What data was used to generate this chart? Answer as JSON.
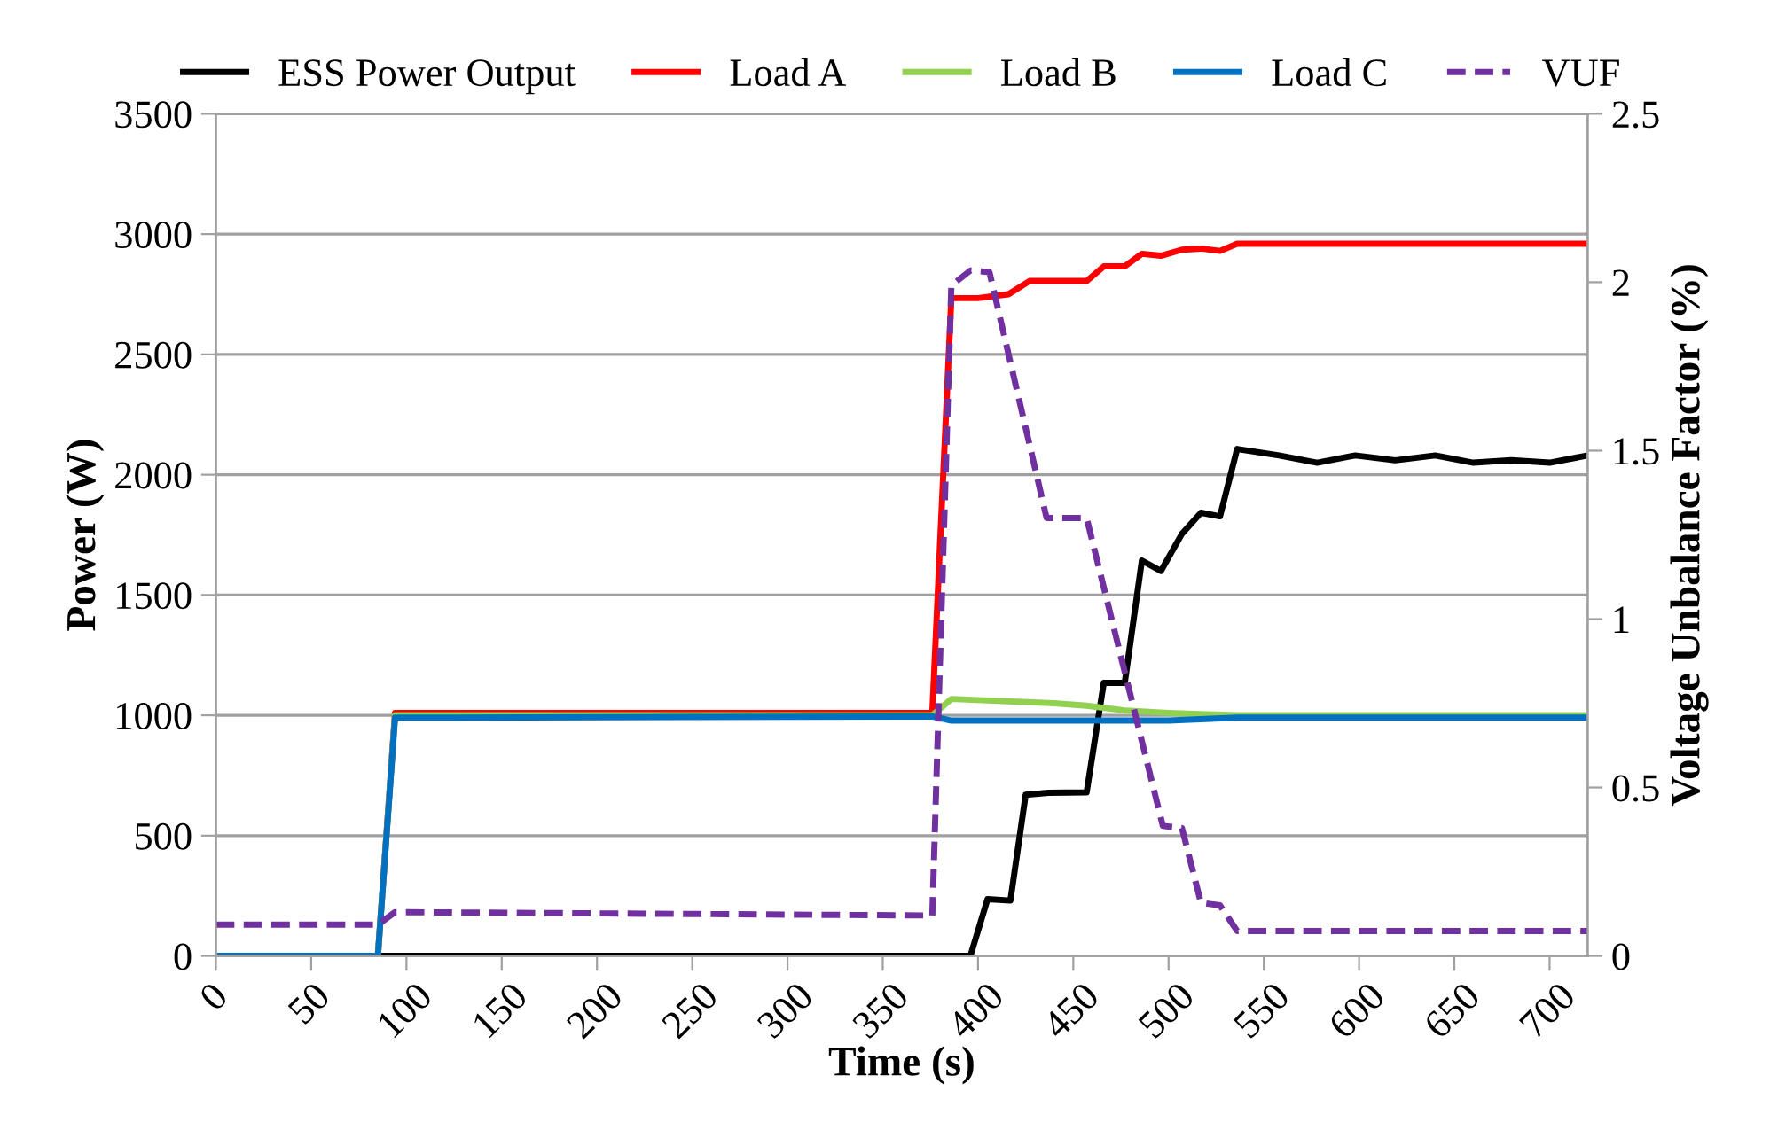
{
  "chart_data": {
    "type": "line",
    "xlabel": "Time (s)",
    "ylabel": "Power (W)",
    "y2label": "Voltage Unbalance Factor (%)",
    "xlim": [
      0,
      720
    ],
    "xticks": [
      0,
      50,
      100,
      150,
      200,
      250,
      300,
      350,
      400,
      450,
      500,
      550,
      600,
      650,
      700
    ],
    "ylim": [
      0,
      3500
    ],
    "yticks": [
      0,
      500,
      1000,
      1500,
      2000,
      2500,
      3000,
      3500
    ],
    "y2lim": [
      0,
      2.5
    ],
    "y2ticks": [
      0,
      0.5,
      1,
      1.5,
      2,
      2.5
    ],
    "grid": "y",
    "legend": "top",
    "marker": "none",
    "series": [
      {
        "name": "ESS Power Output",
        "color": "#000000",
        "x": [
          0,
          396,
          405,
          417,
          425,
          437,
          457,
          466,
          477,
          486,
          496,
          507,
          517,
          527,
          536,
          558,
          578,
          598,
          619,
          640,
          660,
          680,
          700,
          720
        ],
        "values": [
          0,
          0,
          236,
          230,
          670,
          678,
          680,
          1135,
          1135,
          1643,
          1600,
          1754,
          1842,
          1827,
          2107,
          2080,
          2050,
          2080,
          2060,
          2080,
          2050,
          2060,
          2050,
          2080
        ]
      },
      {
        "name": "Load A",
        "color": "#ff0000",
        "x": [
          0,
          85,
          94,
          376,
          386,
          400,
          416,
          427,
          457,
          466,
          477,
          486,
          496,
          507,
          517,
          527,
          536,
          720
        ],
        "values": [
          0,
          0,
          1010,
          1010,
          2734,
          2734,
          2750,
          2805,
          2805,
          2866,
          2866,
          2918,
          2910,
          2935,
          2940,
          2930,
          2960,
          2960
        ]
      },
      {
        "name": "Load B",
        "color": "#92d050",
        "x": [
          0,
          85,
          94,
          376,
          386,
          440,
          457,
          477,
          500,
          517,
          536,
          720
        ],
        "values": [
          0,
          0,
          1000,
          1000,
          1068,
          1050,
          1040,
          1020,
          1010,
          1005,
          1000,
          1000
        ]
      },
      {
        "name": "Load C",
        "color": "#0070c0",
        "x": [
          0,
          85,
          94,
          376,
          386,
          500,
          536,
          720
        ],
        "values": [
          0,
          0,
          990,
          995,
          978,
          978,
          990,
          990
        ]
      },
      {
        "name": "VUF",
        "color": "#7030a0",
        "axis": "y2",
        "line_style": "dashed",
        "x": [
          0,
          85,
          94,
          376,
          386,
          396,
          406,
          436,
          457,
          497,
          507,
          517,
          527,
          536,
          720
        ],
        "values": [
          0.093,
          0.093,
          0.13,
          0.12,
          1.99,
          2.035,
          2.03,
          1.3,
          1.3,
          0.386,
          0.38,
          0.158,
          0.15,
          0.074,
          0.074
        ]
      }
    ]
  }
}
